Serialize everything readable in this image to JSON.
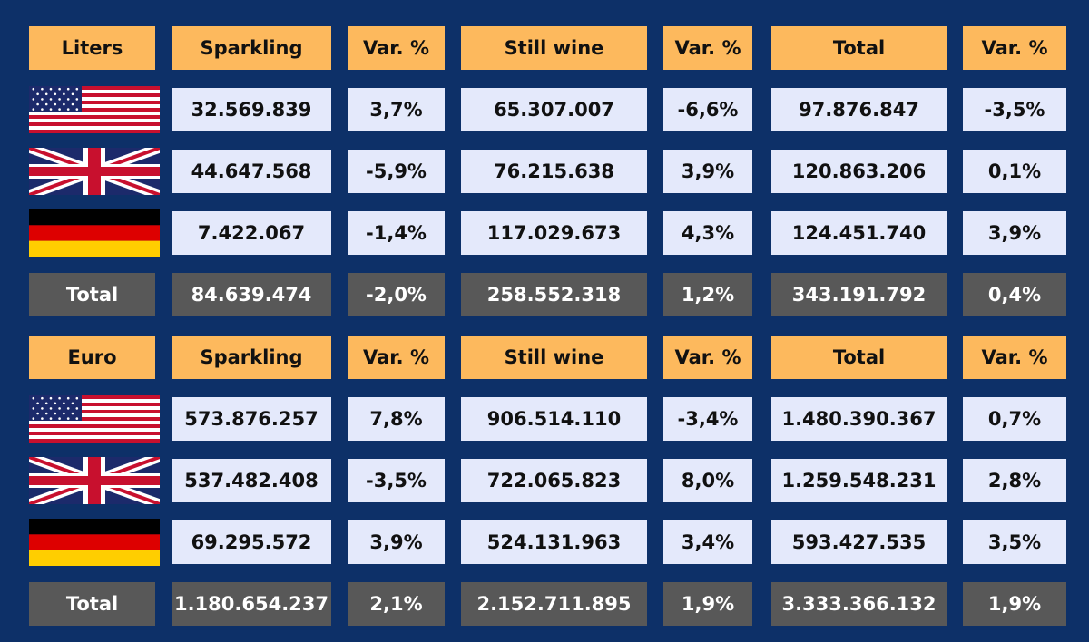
{
  "chart_data": {
    "type": "table",
    "columns": [
      "Sparkling",
      "Var. %",
      "Still wine",
      "Var. %",
      "Total",
      "Var. %"
    ],
    "sections": [
      {
        "unit_label": "Liters",
        "rows": [
          {
            "country": "United States",
            "flag_icon": "us-flag-icon",
            "values": [
              "32.569.839",
              "3,7%",
              "65.307.007",
              "-6,6%",
              "97.876.847",
              "-3,5%"
            ]
          },
          {
            "country": "United Kingdom",
            "flag_icon": "uk-flag-icon",
            "values": [
              "44.647.568",
              "-5,9%",
              "76.215.638",
              "3,9%",
              "120.863.206",
              "0,1%"
            ]
          },
          {
            "country": "Germany",
            "flag_icon": "germany-flag-icon",
            "values": [
              "7.422.067",
              "-1,4%",
              "117.029.673",
              "4,3%",
              "124.451.740",
              "3,9%"
            ]
          }
        ],
        "total": {
          "label": "Total",
          "values": [
            "84.639.474",
            "-2,0%",
            "258.552.318",
            "1,2%",
            "343.191.792",
            "0,4%"
          ]
        }
      },
      {
        "unit_label": "Euro",
        "rows": [
          {
            "country": "United States",
            "flag_icon": "us-flag-icon",
            "values": [
              "573.876.257",
              "7,8%",
              "906.514.110",
              "-3,4%",
              "1.480.390.367",
              "0,7%"
            ]
          },
          {
            "country": "United Kingdom",
            "flag_icon": "uk-flag-icon",
            "values": [
              "537.482.408",
              "-3,5%",
              "722.065.823",
              "8,0%",
              "1.259.548.231",
              "2,8%"
            ]
          },
          {
            "country": "Germany",
            "flag_icon": "germany-flag-icon",
            "values": [
              "69.295.572",
              "3,9%",
              "524.131.963",
              "3,4%",
              "593.427.535",
              "3,5%"
            ]
          }
        ],
        "total": {
          "label": "Total",
          "values": [
            "1.180.654.237",
            "2,1%",
            "2.152.711.895",
            "1,9%",
            "3.333.366.132",
            "1,9%"
          ]
        }
      }
    ]
  },
  "colors": {
    "background": "#0d3068",
    "header": "#fdb95d",
    "value_cell": "#e4e9fb",
    "total_row": "#585858"
  }
}
